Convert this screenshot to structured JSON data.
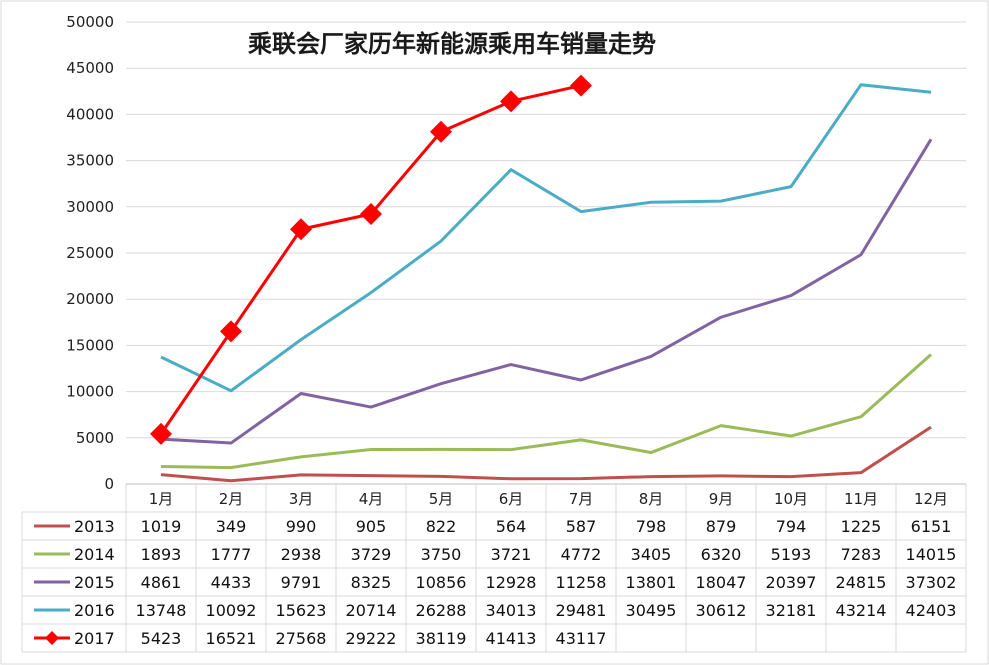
{
  "chart_data": {
    "type": "line",
    "title": "乘联会厂家历年新能源乘用车销量走势",
    "categories": [
      "1月",
      "2月",
      "3月",
      "4月",
      "5月",
      "6月",
      "7月",
      "8月",
      "9月",
      "10月",
      "11月",
      "12月"
    ],
    "ylim": [
      0,
      50000
    ],
    "yticks": [
      0,
      5000,
      10000,
      15000,
      20000,
      25000,
      30000,
      35000,
      40000,
      45000,
      50000
    ],
    "grid": true,
    "legend": "data-table-below",
    "series": [
      {
        "name": "2013",
        "color": "#c0504d",
        "marker": "none",
        "values": [
          1019,
          349,
          990,
          905,
          822,
          564,
          587,
          798,
          879,
          794,
          1225,
          6151
        ]
      },
      {
        "name": "2014",
        "color": "#9bbb59",
        "marker": "none",
        "values": [
          1893,
          1777,
          2938,
          3729,
          3750,
          3721,
          4772,
          3405,
          6320,
          5193,
          7283,
          14015
        ]
      },
      {
        "name": "2015",
        "color": "#8064a2",
        "marker": "none",
        "values": [
          4861,
          4433,
          9791,
          8325,
          10856,
          12928,
          11258,
          13801,
          18047,
          20397,
          24815,
          37302
        ]
      },
      {
        "name": "2016",
        "color": "#4bacc6",
        "marker": "none",
        "values": [
          13748,
          10092,
          15623,
          20714,
          26288,
          34013,
          29481,
          30495,
          30612,
          32181,
          43214,
          42403
        ]
      },
      {
        "name": "2017",
        "color": "#ff0000",
        "marker": "diamond",
        "values": [
          5423,
          16521,
          27568,
          29222,
          38119,
          41413,
          43117,
          null,
          null,
          null,
          null,
          null
        ]
      }
    ]
  }
}
